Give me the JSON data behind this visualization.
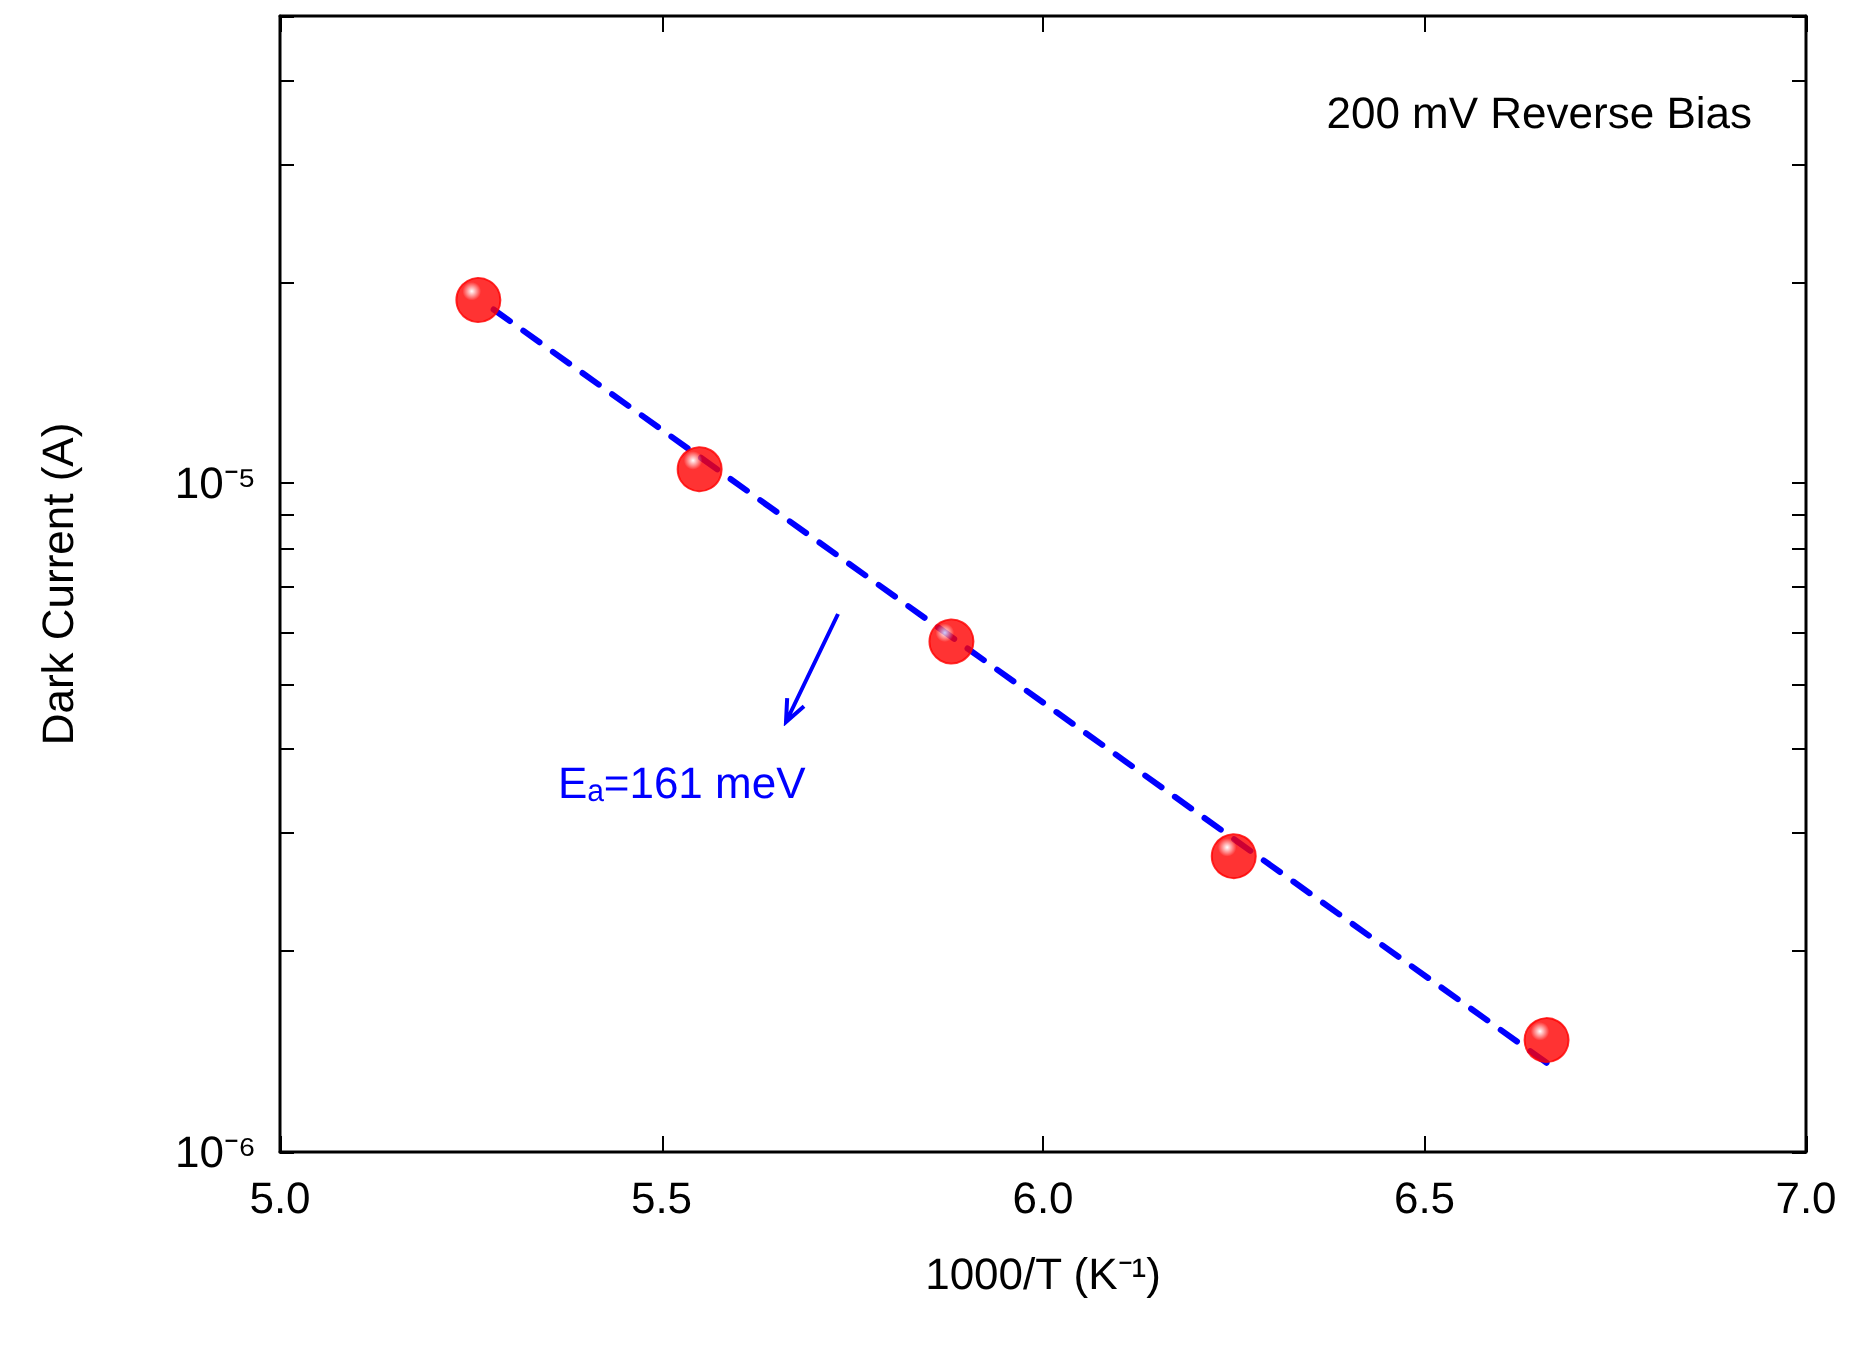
{
  "chart_data": {
    "type": "scatter",
    "xlabel": "1000/T (K⁻¹)",
    "ylabel": "Dark Current (A)",
    "log": "y",
    "grid": false,
    "xlim": [
      5.0,
      7.0
    ],
    "xticks": [
      {
        "value": 5.0,
        "label": "5.0"
      },
      {
        "value": 5.5,
        "label": "5.5"
      },
      {
        "value": 6.0,
        "label": "6.0"
      },
      {
        "value": 6.5,
        "label": "6.5"
      },
      {
        "value": 7.0,
        "label": "7.0"
      }
    ],
    "ylim": [
      1e-06,
      5e-05
    ],
    "yticks": [
      {
        "value": 1e-06,
        "label": "10⁻⁶"
      },
      {
        "value": 2e-06,
        "label": null
      },
      {
        "value": 3e-06,
        "label": null
      },
      {
        "value": 4e-06,
        "label": null
      },
      {
        "value": 5e-06,
        "label": null
      },
      {
        "value": 6e-06,
        "label": null
      },
      {
        "value": 7e-06,
        "label": null
      },
      {
        "value": 8e-06,
        "label": null
      },
      {
        "value": 9e-06,
        "label": null
      },
      {
        "value": 1e-05,
        "label": "10⁻⁵"
      },
      {
        "value": 2e-05,
        "label": null
      },
      {
        "value": 3e-05,
        "label": null
      },
      {
        "value": 4e-05,
        "label": null
      },
      {
        "value": 5e-05,
        "label": null
      }
    ],
    "series": [
      {
        "color": "#ff0000",
        "marker": "circle",
        "x": [
          5.26,
          5.55,
          5.88,
          6.25,
          6.66
        ],
        "values": [
          1.88e-05,
          1.05e-05,
          5.8e-06,
          2.77e-06,
          1.47e-06
        ]
      },
      {
        "type": "line",
        "color": "#0000ff",
        "marker": "none",
        "line_style": "dashed",
        "x": [
          5.28,
          6.66
        ],
        "values": [
          1.82e-05,
          1.36e-06
        ]
      }
    ],
    "annotations": [
      "200 mV Reverse Bias",
      "Eₐ=161 meV"
    ]
  }
}
